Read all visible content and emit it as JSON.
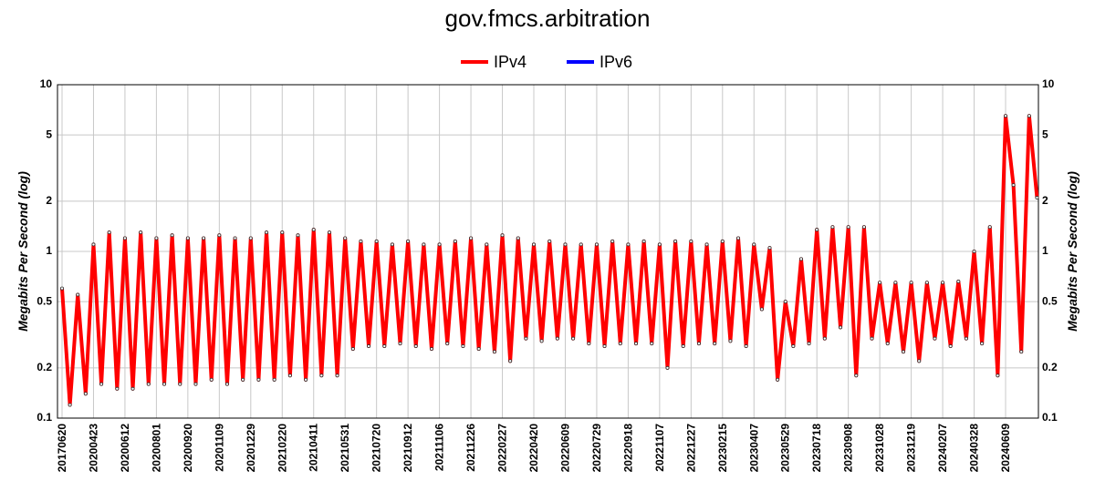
{
  "chart_data": {
    "type": "line",
    "title": "gov.fmcs.arbitration",
    "y_label": "Megabits Per Second (log)",
    "y2_label": "Megabits Per Second (log)",
    "log_scale": true,
    "grid": true,
    "legend": "top",
    "categories": [
      "20170620",
      null,
      null,
      null,
      "20200423",
      null,
      null,
      null,
      "20200612",
      null,
      null,
      null,
      "20200801",
      null,
      null,
      null,
      "20200920",
      null,
      null,
      null,
      "20201109",
      null,
      null,
      null,
      "20201229",
      null,
      null,
      null,
      "20210220",
      null,
      null,
      null,
      "20210411",
      null,
      null,
      null,
      "20210531",
      null,
      null,
      null,
      "20210720",
      null,
      null,
      null,
      "20210912",
      null,
      null,
      null,
      "20211106",
      null,
      null,
      null,
      "20211226",
      null,
      null,
      null,
      "20220227",
      null,
      null,
      null,
      "20220420",
      null,
      null,
      null,
      "20220609",
      null,
      null,
      null,
      "20220729",
      null,
      null,
      null,
      "20220918",
      null,
      null,
      null,
      "20221107",
      null,
      null,
      null,
      "20221227",
      null,
      null,
      null,
      "20230215",
      null,
      null,
      null,
      "20230407",
      null,
      null,
      null,
      "20230529",
      null,
      null,
      null,
      "20230718",
      null,
      null,
      null,
      "20230908",
      null,
      null,
      null,
      "20231028",
      null,
      null,
      null,
      "20231219",
      null,
      null,
      null,
      "20240207",
      null,
      null,
      null,
      "20240328",
      null,
      null,
      null,
      "20240609",
      null,
      null,
      null,
      null
    ],
    "series": [
      {
        "name": "IPv4",
        "color": "#ff0000",
        "values": [
          0.6,
          0.12,
          0.55,
          0.14,
          1.1,
          0.16,
          1.3,
          0.15,
          1.2,
          0.15,
          1.3,
          0.16,
          1.2,
          0.16,
          1.25,
          0.16,
          1.2,
          0.16,
          1.2,
          0.17,
          1.25,
          0.16,
          1.2,
          0.17,
          1.2,
          0.17,
          1.3,
          0.17,
          1.3,
          0.18,
          1.25,
          0.17,
          1.35,
          0.18,
          1.3,
          0.18,
          1.2,
          0.26,
          1.15,
          0.27,
          1.15,
          0.27,
          1.1,
          0.28,
          1.15,
          0.27,
          1.1,
          0.26,
          1.1,
          0.28,
          1.15,
          0.27,
          1.2,
          0.26,
          1.1,
          0.25,
          1.25,
          0.22,
          1.2,
          0.3,
          1.1,
          0.29,
          1.15,
          0.3,
          1.1,
          0.3,
          1.1,
          0.28,
          1.1,
          0.27,
          1.15,
          0.28,
          1.1,
          0.28,
          1.15,
          0.28,
          1.1,
          0.2,
          1.15,
          0.27,
          1.15,
          0.28,
          1.1,
          0.28,
          1.15,
          0.29,
          1.2,
          0.27,
          1.1,
          0.45,
          1.05,
          0.17,
          0.5,
          0.27,
          0.9,
          0.28,
          1.35,
          0.3,
          1.4,
          0.35,
          1.4,
          0.18,
          1.4,
          0.3,
          0.65,
          0.28,
          0.65,
          0.25,
          0.65,
          0.22,
          0.65,
          0.3,
          0.65,
          0.27,
          0.66,
          0.3,
          1.0,
          0.28,
          1.4,
          0.18,
          6.5,
          2.5,
          0.25,
          6.5,
          2.1
        ]
      },
      {
        "name": "IPv6",
        "color": "#0000ff",
        "values": [
          null,
          null,
          null,
          null,
          null,
          null,
          null,
          null,
          null,
          null,
          null,
          null,
          null,
          null,
          null,
          null,
          null,
          null,
          null,
          null,
          null,
          null,
          null,
          null,
          null,
          null,
          null,
          null,
          null,
          null,
          null,
          null,
          null,
          null,
          null,
          null,
          null,
          null,
          null,
          null,
          null,
          null,
          null,
          null,
          null,
          null,
          null,
          null,
          null,
          null,
          null,
          null,
          null,
          null,
          null,
          null,
          null,
          null,
          null,
          null,
          null,
          null,
          null,
          null,
          null,
          null,
          null,
          null,
          null,
          null,
          null,
          null,
          null,
          null,
          null,
          null,
          null,
          null,
          null,
          null,
          null,
          null,
          null,
          null,
          null,
          null,
          null,
          null,
          null,
          null,
          null,
          null,
          null,
          null,
          null,
          null,
          null,
          null,
          null,
          null,
          null,
          null,
          null,
          null,
          null,
          null,
          null,
          null,
          null,
          null,
          null,
          null,
          null,
          null,
          null,
          null,
          null,
          null,
          null,
          null,
          null,
          null,
          null,
          null,
          null
        ]
      }
    ],
    "ylim": [
      0.1,
      10
    ],
    "yticks": [
      0.1,
      0.2,
      0.5,
      1,
      2,
      5,
      10
    ],
    "y2lim": [
      0.1,
      10
    ],
    "y2ticks": [
      0.1,
      0.2,
      0.5,
      1,
      2,
      5,
      10
    ]
  }
}
